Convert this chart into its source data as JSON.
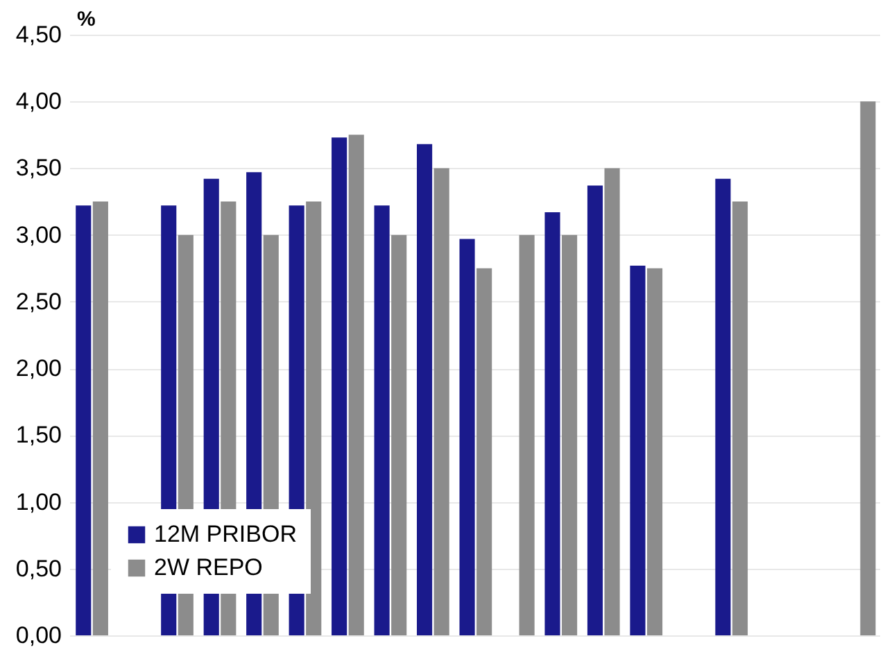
{
  "chart_data": {
    "type": "bar",
    "ylabel": "%",
    "categories": [
      null,
      null,
      null,
      null,
      null,
      null,
      null,
      null,
      null,
      null,
      null,
      null,
      null,
      null,
      null,
      null,
      null,
      null,
      null
    ],
    "series": [
      {
        "name": "12M PRIBOR",
        "color": "#1a1a8c",
        "values": [
          3.22,
          null,
          3.22,
          3.42,
          3.47,
          3.22,
          3.73,
          3.22,
          3.68,
          2.97,
          null,
          3.17,
          3.37,
          2.77,
          null,
          3.42,
          null,
          null,
          null
        ]
      },
      {
        "name": "2W REPO",
        "color": "#8c8c8c",
        "values": [
          3.25,
          null,
          3.0,
          3.25,
          3.0,
          3.25,
          3.75,
          3.0,
          3.5,
          2.75,
          3.0,
          3.0,
          3.5,
          2.75,
          null,
          3.25,
          null,
          null,
          4.0
        ]
      }
    ],
    "ylim": [
      0,
      4.5
    ],
    "yticks": [
      {
        "value": 0,
        "label": "0,00"
      },
      {
        "value": 0.5,
        "label": "0,50"
      },
      {
        "value": 1,
        "label": "1,00"
      },
      {
        "value": 1.5,
        "label": "1,50"
      },
      {
        "value": 2,
        "label": "2,00"
      },
      {
        "value": 2.5,
        "label": "2,50"
      },
      {
        "value": 3,
        "label": "3,00"
      },
      {
        "value": 3.5,
        "label": "3,50"
      },
      {
        "value": 4,
        "label": "4,00"
      },
      {
        "value": 4.5,
        "label": "4,50"
      }
    ],
    "grid": "y",
    "legend": "bottom left",
    "tick_labels": "y"
  }
}
